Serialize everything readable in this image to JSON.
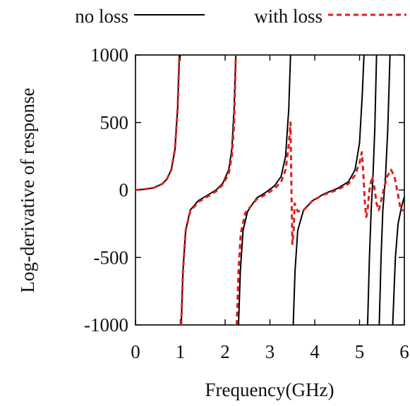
{
  "chart_data": {
    "type": "line",
    "title": "",
    "xlabel": "Frequency(GHz)",
    "ylabel": "Log-derivative of response",
    "xlim": [
      0,
      6
    ],
    "ylim": [
      -1000,
      1000
    ],
    "x_ticks": [
      "0",
      "1",
      "2",
      "3",
      "4",
      "5",
      "6"
    ],
    "y_ticks": [
      "1000",
      "500",
      "0",
      "-500",
      "-1000"
    ],
    "grid": false,
    "legend_position": "top",
    "series": [
      {
        "name": "no loss",
        "color": "#000000",
        "style": "solid",
        "segments": [
          [
            [
              0,
              0
            ],
            [
              0.2,
              5
            ],
            [
              0.4,
              15
            ],
            [
              0.6,
              45
            ],
            [
              0.7,
              80
            ],
            [
              0.8,
              150
            ],
            [
              0.88,
              300
            ],
            [
              0.94,
              600
            ],
            [
              0.98,
              1000
            ]
          ],
          [
            [
              1.02,
              -1000
            ],
            [
              1.06,
              -600
            ],
            [
              1.12,
              -300
            ],
            [
              1.22,
              -150
            ],
            [
              1.4,
              -80
            ],
            [
              1.6,
              -40
            ],
            [
              1.8,
              0
            ],
            [
              1.95,
              50
            ],
            [
              2.08,
              150
            ],
            [
              2.15,
              300
            ],
            [
              2.2,
              600
            ],
            [
              2.24,
              1000
            ]
          ],
          [
            [
              2.3,
              -1000
            ],
            [
              2.34,
              -600
            ],
            [
              2.4,
              -300
            ],
            [
              2.5,
              -160
            ],
            [
              2.7,
              -60
            ],
            [
              2.9,
              -20
            ],
            [
              3.1,
              30
            ],
            [
              3.25,
              100
            ],
            [
              3.35,
              250
            ],
            [
              3.42,
              600
            ],
            [
              3.46,
              1000
            ]
          ],
          [
            [
              3.52,
              -1000
            ],
            [
              3.56,
              -600
            ],
            [
              3.62,
              -300
            ],
            [
              3.75,
              -150
            ],
            [
              3.95,
              -80
            ],
            [
              4.2,
              -30
            ],
            [
              4.5,
              10
            ],
            [
              4.75,
              60
            ],
            [
              4.9,
              150
            ],
            [
              5.0,
              350
            ],
            [
              5.06,
              700
            ],
            [
              5.1,
              1000
            ]
          ],
          [
            [
              5.18,
              -1000
            ],
            [
              5.22,
              -500
            ],
            [
              5.26,
              -150
            ],
            [
              5.3,
              100
            ],
            [
              5.34,
              450
            ],
            [
              5.38,
              1000
            ]
          ],
          [
            [
              5.44,
              -1000
            ],
            [
              5.48,
              -500
            ],
            [
              5.52,
              -150
            ],
            [
              5.58,
              100
            ],
            [
              5.63,
              450
            ],
            [
              5.68,
              1000
            ]
          ],
          [
            [
              5.74,
              -1000
            ],
            [
              5.8,
              -500
            ],
            [
              5.86,
              -250
            ],
            [
              5.94,
              -120
            ],
            [
              6.0,
              -50
            ]
          ]
        ]
      },
      {
        "name": "with loss",
        "color": "#e01e1e",
        "style": "dashed",
        "segments": [
          [
            [
              0,
              0
            ],
            [
              0.2,
              5
            ],
            [
              0.4,
              15
            ],
            [
              0.6,
              45
            ],
            [
              0.7,
              80
            ],
            [
              0.8,
              150
            ],
            [
              0.88,
              300
            ],
            [
              0.94,
              600
            ],
            [
              0.98,
              1000
            ]
          ],
          [
            [
              1.02,
              -1000
            ],
            [
              1.06,
              -600
            ],
            [
              1.12,
              -300
            ],
            [
              1.22,
              -160
            ],
            [
              1.4,
              -90
            ],
            [
              1.6,
              -50
            ],
            [
              1.8,
              -10
            ],
            [
              1.95,
              40
            ],
            [
              2.08,
              120
            ],
            [
              2.15,
              250
            ],
            [
              2.2,
              480
            ],
            [
              2.24,
              1000
            ]
          ],
          [
            [
              2.26,
              -1000
            ],
            [
              2.3,
              -600
            ],
            [
              2.35,
              -320
            ],
            [
              2.45,
              -170
            ],
            [
              2.7,
              -70
            ],
            [
              2.9,
              -35
            ],
            [
              3.1,
              10
            ],
            [
              3.25,
              60
            ],
            [
              3.35,
              150
            ],
            [
              3.42,
              330
            ],
            [
              3.46,
              500
            ],
            [
              3.48,
              0
            ],
            [
              3.5,
              -400
            ],
            [
              3.53,
              -300
            ],
            [
              3.55,
              -100
            ],
            [
              3.62,
              -160
            ],
            [
              3.75,
              -150
            ],
            [
              3.95,
              -80
            ],
            [
              4.2,
              -35
            ],
            [
              4.5,
              0
            ],
            [
              4.75,
              45
            ],
            [
              4.9,
              110
            ],
            [
              5.0,
              200
            ],
            [
              5.05,
              280
            ],
            [
              5.08,
              150
            ],
            [
              5.12,
              -100
            ],
            [
              5.15,
              -200
            ],
            [
              5.18,
              -150
            ],
            [
              5.22,
              0
            ],
            [
              5.28,
              100
            ],
            [
              5.33,
              20
            ],
            [
              5.38,
              -100
            ],
            [
              5.43,
              -150
            ],
            [
              5.48,
              -80
            ],
            [
              5.55,
              20
            ],
            [
              5.62,
              100
            ],
            [
              5.7,
              150
            ],
            [
              5.78,
              100
            ],
            [
              5.85,
              -20
            ],
            [
              5.92,
              -150
            ],
            [
              6.0,
              -150
            ]
          ]
        ]
      }
    ]
  }
}
